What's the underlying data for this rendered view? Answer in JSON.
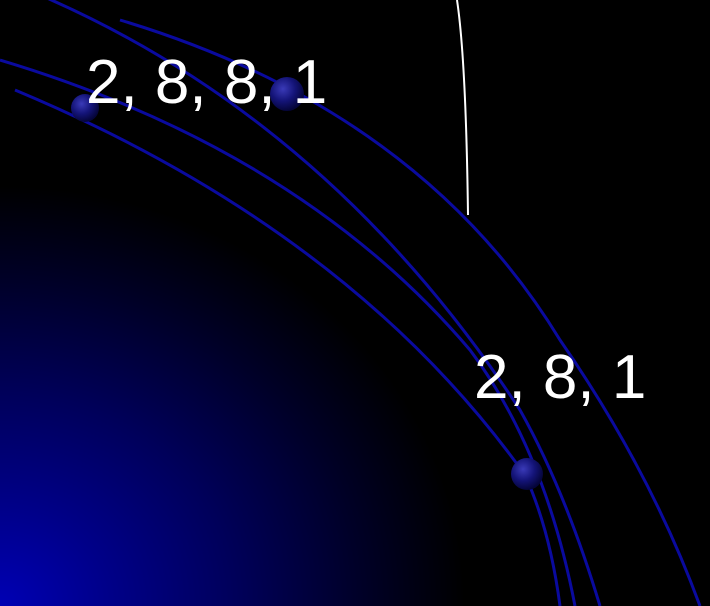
{
  "labels": {
    "outer_configuration": "2, 8, 8, 1",
    "inner_configuration": "2, 8, 1"
  },
  "colors": {
    "background": "#000000",
    "glow": "#0000b4",
    "orbit": "#0a0a9e",
    "electron": "#141478",
    "text": "#ffffff",
    "pointer_line": "#ffffff"
  },
  "icons": {
    "electron": "sphere"
  }
}
